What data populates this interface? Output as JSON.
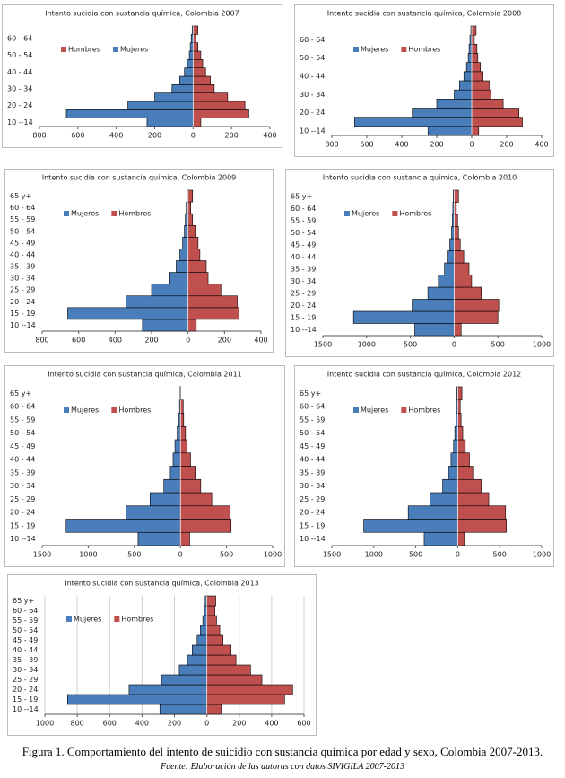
{
  "chart_data": [
    {
      "type": "pyramid",
      "title": "Intento sucidia con sustancia química, Colombia 2007",
      "categories": [
        "10 --14",
        null,
        "20 - 24",
        null,
        "30 - 34",
        null,
        "40 - 44",
        null,
        "50 - 54",
        null,
        "60 - 64",
        null
      ],
      "series": [
        {
          "name": "Hombres",
          "color": "#c0504d",
          "values": [
            40,
            290,
            270,
            180,
            110,
            90,
            65,
            50,
            40,
            25,
            15,
            25
          ]
        },
        {
          "name": "Mujeres",
          "color": "#4a7ebb",
          "values": [
            -240,
            -660,
            -340,
            -200,
            -110,
            -70,
            -45,
            -30,
            -20,
            -15,
            -10,
            -5
          ]
        }
      ],
      "xlim": [
        -800,
        400
      ],
      "xticks": [
        {
          "value": -800,
          "label": "800"
        },
        {
          "value": -600,
          "label": "600"
        },
        {
          "value": -400,
          "label": "400"
        },
        {
          "value": -200,
          "label": "200"
        },
        0,
        200,
        400
      ],
      "grid": false,
      "legend": "upper left"
    },
    {
      "type": "pyramid",
      "title": "Intento sucidia con sustancia química, Colombia 2008",
      "categories": [
        "10 --14",
        null,
        "20 - 24",
        null,
        "30 - 34",
        null,
        "40 - 44",
        null,
        "50 - 54",
        null,
        "60 - 64",
        null
      ],
      "series": [
        {
          "name": "Mujeres",
          "color": "#4a7ebb",
          "values": [
            -250,
            -670,
            -340,
            -200,
            -100,
            -70,
            -45,
            -30,
            -20,
            -15,
            -10,
            -5
          ]
        },
        {
          "name": "Hombres",
          "color": "#c0504d",
          "values": [
            40,
            290,
            270,
            180,
            110,
            100,
            65,
            50,
            35,
            30,
            15,
            25
          ]
        }
      ],
      "xlim": [
        -800,
        400
      ],
      "xticks": [
        {
          "value": -800,
          "label": "800"
        },
        {
          "value": -600,
          "label": "600"
        },
        {
          "value": -400,
          "label": "400"
        },
        {
          "value": -200,
          "label": "200"
        },
        0,
        200,
        400
      ],
      "grid": false,
      "legend": "upper left"
    },
    {
      "type": "pyramid",
      "title": "Intento sucidia con sustancia química, Colombia 2009",
      "categories": [
        "10 --14",
        "15 - 19",
        "20 - 24",
        "25 - 29",
        "30 - 34",
        "35 - 39",
        "40 - 44",
        "45 - 49",
        "50 - 54",
        "55 - 59",
        "60 - 64",
        "65 y+"
      ],
      "series": [
        {
          "name": "Mujeres",
          "color": "#4a7ebb",
          "values": [
            -250,
            -660,
            -340,
            -200,
            -100,
            -65,
            -45,
            -30,
            -20,
            -15,
            -10,
            -5
          ]
        },
        {
          "name": "Hombres",
          "color": "#c0504d",
          "values": [
            45,
            280,
            270,
            180,
            110,
            100,
            65,
            55,
            40,
            25,
            15,
            25
          ]
        }
      ],
      "xlim": [
        -800,
        400
      ],
      "xticks": [
        {
          "value": -800,
          "label": "800"
        },
        {
          "value": -600,
          "label": "600"
        },
        {
          "value": -400,
          "label": "400"
        },
        {
          "value": -200,
          "label": "200"
        },
        0,
        200,
        400
      ],
      "grid": false,
      "legend": "upper left"
    },
    {
      "type": "pyramid",
      "title": "Intento sucidia con sustancia química, Colombia 2010",
      "categories": [
        "10 --14",
        "15 - 19",
        "20 - 24",
        "25 - 29",
        "30 - 34",
        "35 - 39",
        "40 - 44",
        "45 - 49",
        "50 - 54",
        "55 - 59",
        "60 - 64",
        "65 y+"
      ],
      "series": [
        {
          "name": "Mujeres",
          "color": "#4a7ebb",
          "values": [
            -450,
            -1150,
            -480,
            -300,
            -180,
            -110,
            -80,
            -50,
            -30,
            -20,
            -15,
            -10
          ]
        },
        {
          "name": "Hombres",
          "color": "#c0504d",
          "values": [
            80,
            500,
            510,
            310,
            200,
            170,
            110,
            70,
            50,
            40,
            25,
            50
          ]
        }
      ],
      "xlim": [
        -1500,
        1000
      ],
      "xticks": [
        {
          "value": -1500,
          "label": "1500"
        },
        {
          "value": -1000,
          "label": "1000"
        },
        {
          "value": -500,
          "label": "500"
        },
        0,
        500,
        1000
      ],
      "grid": false,
      "legend": "upper left"
    },
    {
      "type": "pyramid",
      "title": "Intento sucidia con sustancia química, Colombia 2011",
      "categories": [
        "10 --14",
        "15 - 19",
        "20 - 24",
        "25 - 29",
        "30 - 34",
        "35 - 39",
        "40 - 44",
        "45 - 49",
        "50 - 54",
        "55 - 59",
        "60 - 64",
        "65 y+"
      ],
      "series": [
        {
          "name": "Mujeres",
          "color": "#4a7ebb",
          "values": [
            -460,
            -1240,
            -590,
            -330,
            -180,
            -110,
            -80,
            -60,
            -35,
            -20,
            -10,
            -5
          ]
        },
        {
          "name": "Hombres",
          "color": "#c0504d",
          "values": [
            100,
            550,
            540,
            340,
            220,
            160,
            110,
            70,
            55,
            35,
            30,
            5
          ]
        }
      ],
      "xlim": [
        -1500,
        1000
      ],
      "xticks": [
        {
          "value": -1500,
          "label": "1500"
        },
        {
          "value": -1000,
          "label": "1000"
        },
        {
          "value": -500,
          "label": "500"
        },
        0,
        500,
        1000
      ],
      "grid": false,
      "legend": "upper left"
    },
    {
      "type": "pyramid",
      "title": "Intento sucidia con sustancia química, Colombia 2012",
      "categories": [
        "10 --14",
        "15 - 19",
        "20 - 24",
        "25 - 29",
        "30 - 34",
        "35 - 39",
        "40 - 44",
        "45 - 49",
        "50 - 54",
        "55 - 59",
        "60 - 64",
        "65 y+"
      ],
      "series": [
        {
          "name": "Mujeres",
          "color": "#4a7ebb",
          "values": [
            -400,
            -1120,
            -590,
            -330,
            -180,
            -110,
            -80,
            -50,
            -35,
            -20,
            -15,
            -10
          ]
        },
        {
          "name": "Hombres",
          "color": "#c0504d",
          "values": [
            80,
            580,
            570,
            370,
            280,
            180,
            140,
            90,
            60,
            40,
            30,
            50
          ]
        }
      ],
      "xlim": [
        -1500,
        1000
      ],
      "xticks": [
        {
          "value": -1500,
          "label": "1500"
        },
        {
          "value": -1000,
          "label": "1000"
        },
        {
          "value": -500,
          "label": "500"
        },
        0,
        500,
        1000
      ],
      "grid": false,
      "legend": "upper left"
    },
    {
      "type": "pyramid",
      "title": "Intento sucidia con sustancia química, Colombia 2013",
      "categories": [
        "10 --14",
        "15 - 19",
        "20 - 24",
        "25 - 29",
        "30 - 34",
        "35 - 39",
        "40 - 44",
        "45 - 49",
        "50 - 54",
        "55 - 59",
        "60 - 64",
        "65 y+"
      ],
      "series": [
        {
          "name": "Mujeres",
          "color": "#4a7ebb",
          "values": [
            -290,
            -860,
            -480,
            -280,
            -170,
            -120,
            -90,
            -60,
            -40,
            -25,
            -15,
            -10
          ]
        },
        {
          "name": "Hombres",
          "color": "#c0504d",
          "values": [
            90,
            480,
            530,
            340,
            270,
            180,
            150,
            100,
            80,
            60,
            50,
            55
          ]
        }
      ],
      "xlim": [
        -1000,
        600
      ],
      "xticks": [
        {
          "value": -1000,
          "label": "1000"
        },
        {
          "value": -800,
          "label": "800"
        },
        {
          "value": -600,
          "label": "600"
        },
        {
          "value": -400,
          "label": "400"
        },
        {
          "value": -200,
          "label": "200"
        },
        0,
        200,
        400,
        600
      ],
      "grid": true,
      "legend": "upper left"
    }
  ],
  "caption": "Figura 1. Comportamiento del intento de suicidio con sustancia química por edad y sexo, Colombia 2007-2013.",
  "source": "Fuente: Elaboración de las autoras con datos SIVIGILA 2007-2013"
}
